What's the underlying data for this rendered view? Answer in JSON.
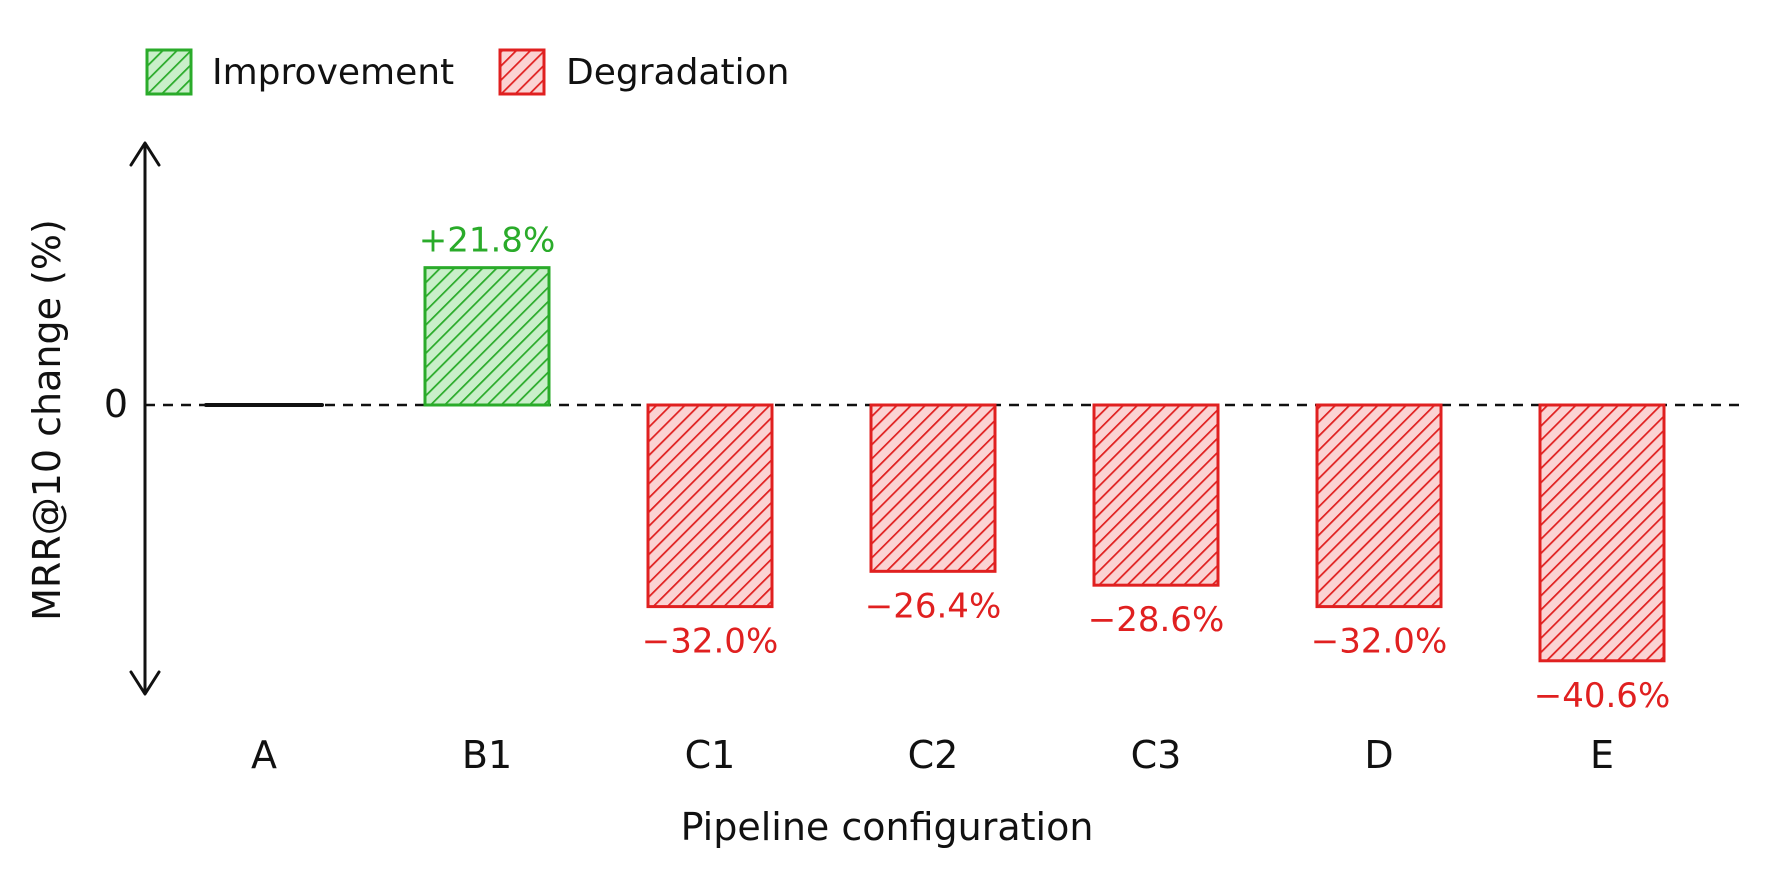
{
  "chart_data": {
    "type": "bar",
    "categories": [
      "A",
      "B1",
      "C1",
      "C2",
      "C3",
      "D",
      "E"
    ],
    "values": [
      0,
      21.8,
      -32.0,
      -26.4,
      -28.6,
      -32.0,
      -40.6
    ],
    "value_labels": [
      "",
      "+21.8%",
      "−32.0%",
      "−26.4%",
      "−28.6%",
      "−32.0%",
      "−40.6%"
    ],
    "xlabel": "Pipeline configuration",
    "ylabel": "MRR@10 change (%)",
    "y_ticks": [
      {
        "value": 0,
        "label": "0"
      }
    ],
    "ylim": [
      -45,
      40
    ],
    "grid": false,
    "zero_line": "dashed",
    "legend": {
      "placement": "top-left",
      "items": [
        {
          "label": "Improvement",
          "color": "#2aab2a"
        },
        {
          "label": "Degradation",
          "color": "#e02020"
        }
      ]
    },
    "colors": {
      "positive": "#2aab2a",
      "negative": "#e02020",
      "axis": "#111111"
    }
  }
}
